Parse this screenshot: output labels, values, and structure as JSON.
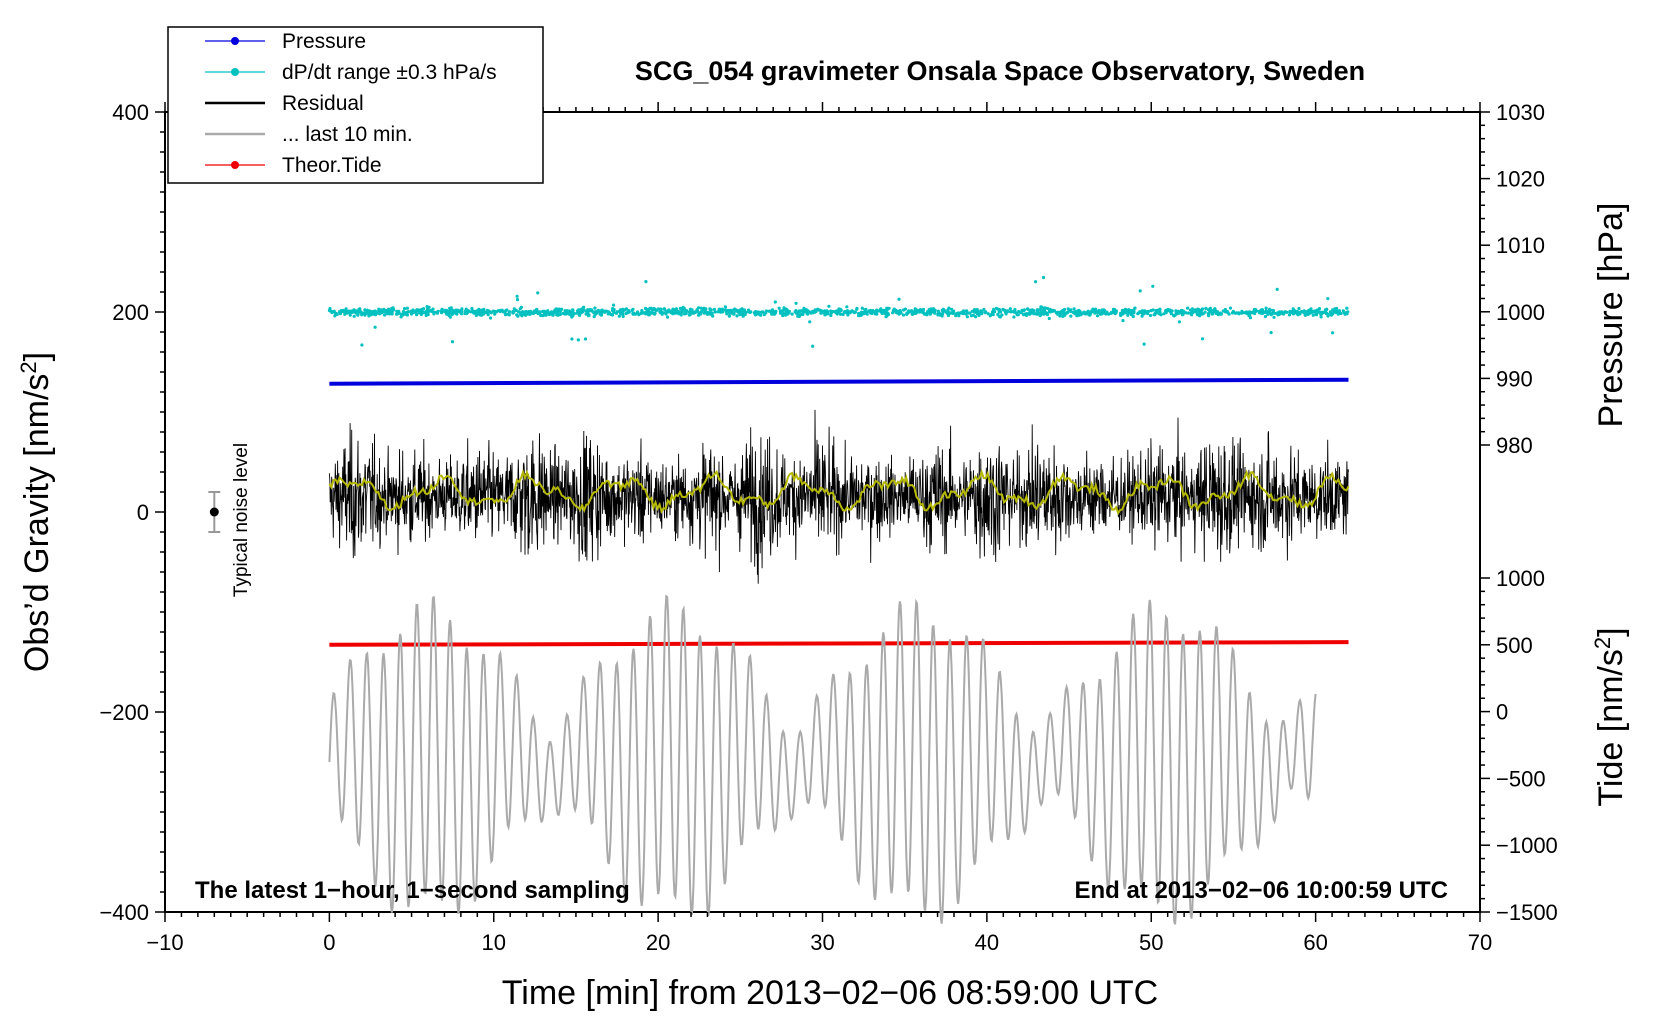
{
  "chart_data": {
    "type": "line",
    "title": "SCG_054 gravimeter Onsala Space Observatory, Sweden",
    "xlabel": "Time [min] from 2013−02−06 08:59:00 UTC",
    "ylabel_left": "Obs’d Gravity [nm/s²]",
    "ylabel_right_pressure": "Pressure [hPa]",
    "ylabel_right_tide": "Tide [nm/s²]",
    "xlim": [
      -10,
      70
    ],
    "ylim": [
      -400,
      400
    ],
    "x_ticks": [
      "−10",
      "0",
      "10",
      "20",
      "30",
      "40",
      "50",
      "60",
      "70"
    ],
    "y_ticks": [
      "400",
      "200",
      "0",
      "−200",
      "−400"
    ],
    "pressure_ticks": [
      "1030",
      "1020",
      "1010",
      "1000",
      "990",
      "980"
    ],
    "tide_ticks": [
      "1000",
      "500",
      "0",
      "−500",
      "−1000",
      "−1500"
    ],
    "annotations": {
      "left_footer": "The latest 1−hour, 1−second sampling",
      "right_footer": "End at 2013−02−06 10:00:59 UTC",
      "noise_label": "Typical noise level"
    },
    "legend": [
      {
        "label": "Pressure",
        "color": "#0000dd",
        "marker": true
      },
      {
        "label": "dP/dt range ±0.3 hPa/s",
        "color": "#00c0c0",
        "marker": true
      },
      {
        "label": "Residual",
        "color": "#000000",
        "marker": false
      },
      {
        "label": "... last 10 min.",
        "color": "#aaaaaa",
        "marker": false
      },
      {
        "label": "Theor.Tide",
        "color": "#ee0000",
        "marker": true
      }
    ],
    "series": [
      {
        "name": "Pressure",
        "axis": "pressure",
        "color": "#0000dd",
        "x": [
          0,
          62
        ],
        "values": [
          989.2,
          989.8
        ]
      },
      {
        "name": "dP/dt range ±0.3 hPa/s",
        "color": "#00c0c0",
        "x_range": [
          0,
          62
        ],
        "center": 200,
        "spread": 8
      },
      {
        "name": "Residual",
        "color": "#000000",
        "x_range": [
          0,
          62
        ],
        "center": 15,
        "spread": 150
      },
      {
        "name": "Residual smoothed",
        "color": "#b5b800",
        "x_range": [
          0,
          62
        ],
        "center": 20,
        "spread": 20
      },
      {
        "name": "Theor.Tide",
        "axis": "tide",
        "color": "#ee0000",
        "x": [
          0,
          62
        ],
        "values": [
          500,
          520
        ]
      },
      {
        "name": "... last 10 min.",
        "color": "#aaaaaa",
        "x_range": [
          0,
          60
        ],
        "center": -250,
        "spread": 150
      }
    ],
    "noise_bar": {
      "x": -7,
      "y": 0,
      "half_range": 20
    }
  }
}
